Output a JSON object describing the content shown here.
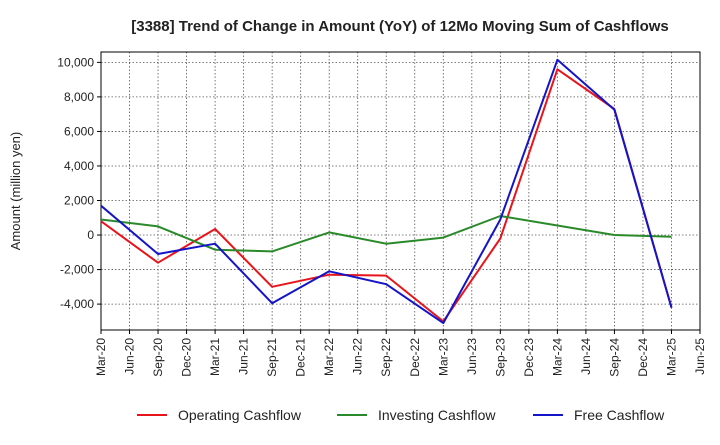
{
  "chart_data": {
    "type": "line",
    "title": "[3388]  Trend of Change in Amount (YoY) of 12Mo Moving Sum of Cashflows",
    "xlabel": "",
    "ylabel": "Amount (million yen)",
    "ylim": [
      -5500,
      10600
    ],
    "yticks": [
      -4000,
      -2000,
      0,
      2000,
      4000,
      6000,
      8000,
      10000
    ],
    "ytick_labels": [
      "-4,000",
      "-2,000",
      "0",
      "2,000",
      "4,000",
      "6,000",
      "8,000",
      "10,000"
    ],
    "grid": true,
    "legend_position": "bottom",
    "categories": [
      "Mar-20",
      "Jun-20",
      "Sep-20",
      "Dec-20",
      "Mar-21",
      "Jun-21",
      "Sep-21",
      "Dec-21",
      "Mar-22",
      "Jun-22",
      "Sep-22",
      "Dec-22",
      "Mar-23",
      "Jun-23",
      "Sep-23",
      "Dec-23",
      "Mar-24",
      "Jun-24",
      "Sep-24",
      "Dec-24",
      "Mar-25",
      "Jun-25"
    ],
    "series": [
      {
        "name": "Operating Cashflow",
        "color": "#e8141b",
        "points": [
          {
            "x": "Mar-20",
            "y": 800
          },
          {
            "x": "Sep-20",
            "y": -1600
          },
          {
            "x": "Mar-21",
            "y": 350
          },
          {
            "x": "Sep-21",
            "y": -3000
          },
          {
            "x": "Mar-22",
            "y": -2300
          },
          {
            "x": "Sep-22",
            "y": -2350
          },
          {
            "x": "Mar-23",
            "y": -5000
          },
          {
            "x": "Sep-23",
            "y": -200
          },
          {
            "x": "Mar-24",
            "y": 9600
          },
          {
            "x": "Sep-24",
            "y": 7300
          },
          {
            "x": "Mar-25",
            "y": -4200
          }
        ]
      },
      {
        "name": "Investing Cashflow",
        "color": "#2a8a2a",
        "points": [
          {
            "x": "Mar-20",
            "y": 900
          },
          {
            "x": "Sep-20",
            "y": 500
          },
          {
            "x": "Mar-21",
            "y": -850
          },
          {
            "x": "Sep-21",
            "y": -950
          },
          {
            "x": "Mar-22",
            "y": 150
          },
          {
            "x": "Sep-22",
            "y": -500
          },
          {
            "x": "Mar-23",
            "y": -150
          },
          {
            "x": "Sep-23",
            "y": 1100
          },
          {
            "x": "Mar-24",
            "y": 550
          },
          {
            "x": "Sep-24",
            "y": 0
          },
          {
            "x": "Mar-25",
            "y": -100
          }
        ]
      },
      {
        "name": "Free Cashflow",
        "color": "#1414c8",
        "points": [
          {
            "x": "Mar-20",
            "y": 1700
          },
          {
            "x": "Sep-20",
            "y": -1100
          },
          {
            "x": "Mar-21",
            "y": -500
          },
          {
            "x": "Sep-21",
            "y": -3950
          },
          {
            "x": "Mar-22",
            "y": -2100
          },
          {
            "x": "Sep-22",
            "y": -2850
          },
          {
            "x": "Mar-23",
            "y": -5100
          },
          {
            "x": "Sep-23",
            "y": 900
          },
          {
            "x": "Mar-24",
            "y": 10150
          },
          {
            "x": "Sep-24",
            "y": 7250
          },
          {
            "x": "Mar-25",
            "y": -4200
          }
        ]
      }
    ]
  }
}
